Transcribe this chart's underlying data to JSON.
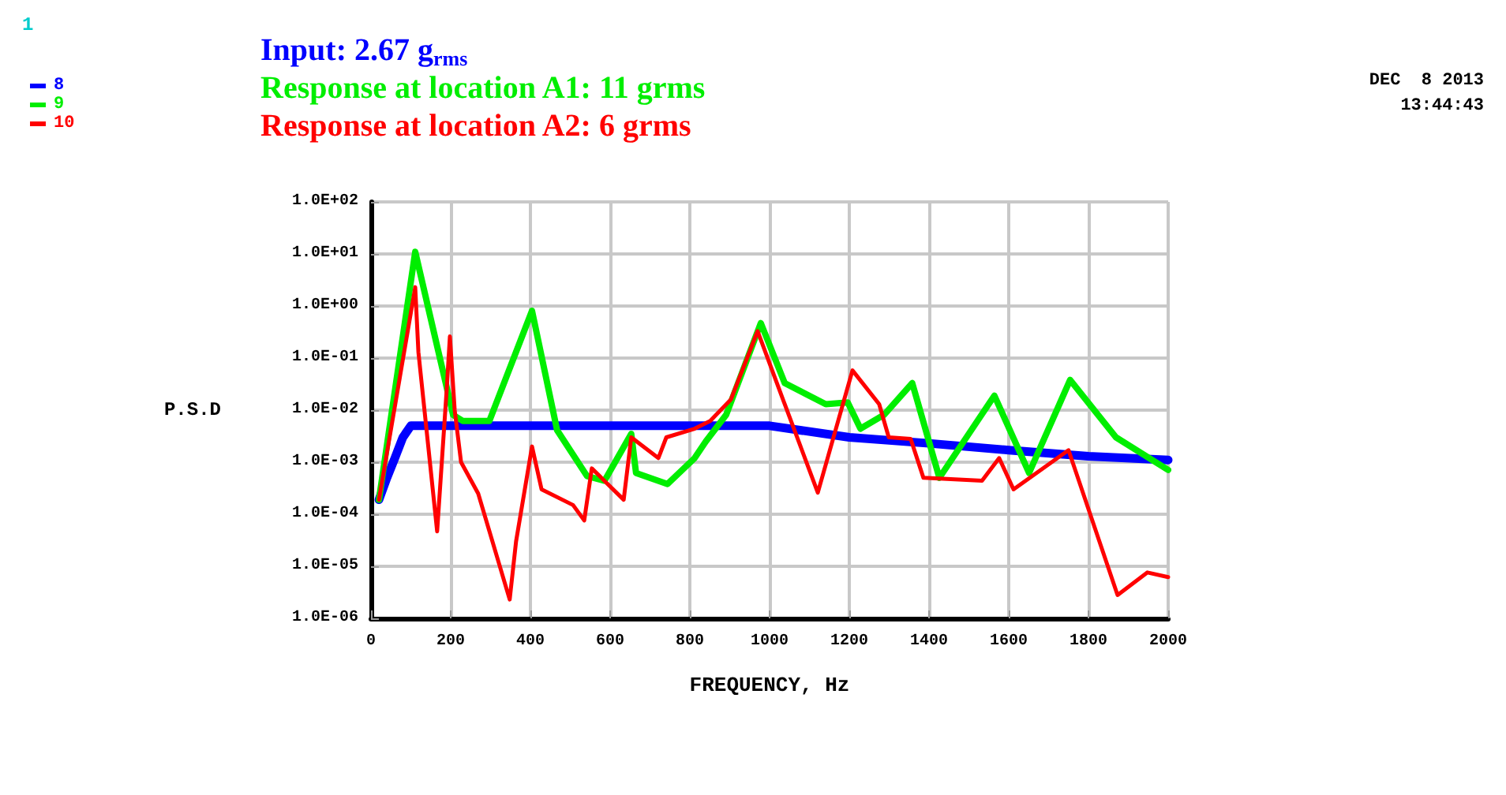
{
  "chart_data": {
    "type": "line",
    "xlabel": "FREQUENCY, Hz",
    "ylabel": "P.S.D",
    "annotations": [
      "Input: 2.67 g$_{rms}$",
      "Response at location A1: 11 grms",
      "Response at location A2: 6 grms",
      "1",
      "DEC  8 2013",
      "13:44:43"
    ],
    "log": "y",
    "grid": true,
    "legend": "top left",
    "marker": "none",
    "line_style": "solid",
    "xlim": [
      0,
      2000
    ],
    "xticks": [
      0,
      200,
      400,
      600,
      800,
      1000,
      1200,
      1400,
      1600,
      1800,
      2000
    ],
    "ylim": [
      1e-06,
      100
    ],
    "yticks": [
      {
        "value": 1e-06,
        "label": "1.0E-06"
      },
      {
        "value": 1e-05,
        "label": "1.0E-05"
      },
      {
        "value": 0.0001,
        "label": "1.0E-04"
      },
      {
        "value": 0.001,
        "label": "1.0E-03"
      },
      {
        "value": 0.01,
        "label": "1.0E-02"
      },
      {
        "value": 0.1,
        "label": "1.0E-01"
      },
      {
        "value": 1,
        "label": "1.0E+00"
      },
      {
        "value": 10,
        "label": "1.0E+01"
      },
      {
        "value": 100,
        "label": "1.0E+02"
      }
    ],
    "series": [
      {
        "name": "8",
        "color": "#0000ff",
        "x": [
          20,
          40,
          60,
          80,
          100,
          1000,
          1200,
          1400,
          1600,
          1800,
          2000
        ],
        "values": [
          0.00019,
          0.0005,
          0.0012,
          0.003,
          0.005,
          0.005,
          0.003,
          0.0023,
          0.0017,
          0.0013,
          0.0011
        ]
      },
      {
        "name": "9",
        "color": "#00ee00",
        "x": [
          20,
          111,
          206,
          230,
          297,
          404,
          467,
          542,
          586,
          653,
          665,
          744,
          812,
          840,
          891,
          978,
          1038,
          1141,
          1196,
          1228,
          1287,
          1358,
          1426,
          1564,
          1651,
          1754,
          1869,
          2000
        ],
        "values": [
          0.00019,
          11,
          0.0081,
          0.0062,
          0.0062,
          0.81,
          0.0041,
          0.00054,
          0.00044,
          0.0035,
          0.00062,
          0.00038,
          0.0012,
          0.0025,
          0.0081,
          0.47,
          0.033,
          0.013,
          0.014,
          0.0044,
          0.0081,
          0.033,
          0.0005,
          0.019,
          0.00062,
          0.038,
          0.003,
          0.00071
        ]
      },
      {
        "name": "10",
        "color": "#ff0000",
        "x": [
          20,
          111,
          119,
          166,
          190,
          198,
          210,
          226,
          269,
          348,
          364,
          404,
          428,
          507,
          535,
          554,
          634,
          653,
          721,
          741,
          812,
          851,
          903,
          970,
          1038,
          1121,
          1208,
          1275,
          1299,
          1354,
          1386,
          1533,
          1576,
          1612,
          1750,
          1873,
          1948,
          2000
        ],
        "values": [
          0.00019,
          2.3,
          0.13,
          4.7e-05,
          0.025,
          0.26,
          0.01,
          0.001,
          0.00025,
          2.3e-06,
          3e-05,
          0.002,
          0.0003,
          0.00015,
          7.6e-05,
          0.00076,
          0.00019,
          0.003,
          0.0012,
          0.003,
          0.0044,
          0.0062,
          0.016,
          0.33,
          0.013,
          0.00026,
          0.058,
          0.013,
          0.003,
          0.0028,
          0.0005,
          0.00044,
          0.0012,
          0.0003,
          0.0017,
          2.8e-06,
          7.6e-06,
          6.2e-06
        ]
      }
    ]
  }
}
